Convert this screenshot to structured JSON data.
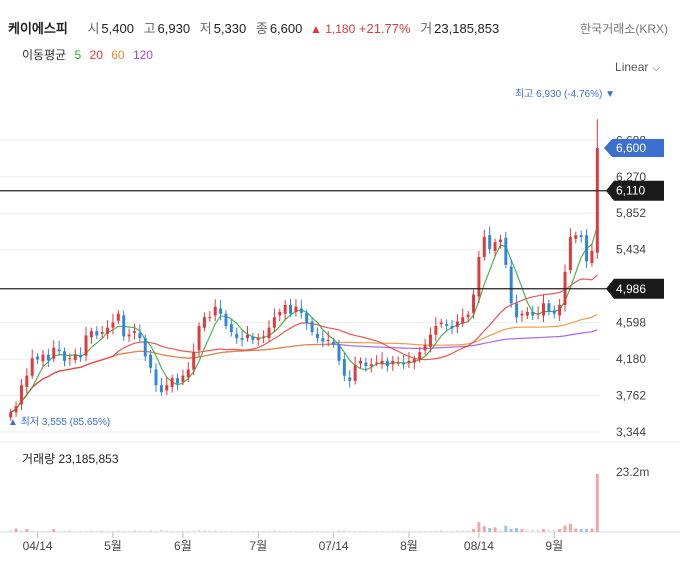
{
  "header": {
    "stock_name": "케이에스피",
    "open_label": "시",
    "open_value": "5,400",
    "high_label": "고",
    "high_value": "6,930",
    "low_label": "저",
    "low_value": "5,330",
    "close_label": "종",
    "close_value": "6,600",
    "change_value": "▲ 1,180",
    "change_pct": "+21.77%",
    "volume_label": "거",
    "volume_value": "23,185,853",
    "exchange": "한국거래소(KRX)"
  },
  "moving_average": {
    "label": "이동평균",
    "periods": [
      {
        "value": "5",
        "color": "#2fa82f"
      },
      {
        "value": "20",
        "color": "#e8393b"
      },
      {
        "value": "60",
        "color": "#f08c24"
      },
      {
        "value": "120",
        "color": "#9b4fe0"
      }
    ]
  },
  "scale_selector": "Linear",
  "colors": {
    "up": "#e2383d",
    "down": "#2f86d9",
    "ma5": "#2fa82f",
    "ma20": "#e8393b",
    "ma60": "#f08c24",
    "ma120": "#9b4fe0"
  },
  "chart_data": {
    "type": "candlestick",
    "ylim": [
      3344,
      7150
    ],
    "yticks": [
      "6,688",
      "6,270",
      "5,852",
      "5,434",
      "4,598",
      "4,180",
      "3,762",
      "3,344"
    ],
    "xlabels": [
      "04/14",
      "5월",
      "6월",
      "7월",
      "07/14",
      "8월",
      "08/14",
      "9월"
    ],
    "max_annotation": "최고 6,930 (-4.76%) ▼",
    "min_annotation": "▲ 최저 3,555 (85.65%)",
    "current_price_label": "6,600",
    "current_price": 6600,
    "horizontal_lines": [
      {
        "label": "6,110",
        "value": 6110
      },
      {
        "label": "4,986",
        "value": 4986
      }
    ],
    "volume_title": "거래량 23,185,853",
    "volume_axis_label": "23.2m",
    "volume_max": 23185853,
    "closes": [
      3570,
      3640,
      3880,
      3990,
      4190,
      4175,
      4230,
      4165,
      4310,
      4270,
      4160,
      4190,
      4230,
      4200,
      4450,
      4500,
      4450,
      4490,
      4540,
      4600,
      4700,
      4440,
      4460,
      4500,
      4420,
      4210,
      4080,
      3880,
      3800,
      3880,
      3960,
      3900,
      3990,
      4060,
      4260,
      4560,
      4660,
      4660,
      4780,
      4700,
      4560,
      4490,
      4420,
      4400,
      4460,
      4400,
      4420,
      4440,
      4540,
      4660,
      4720,
      4800,
      4700,
      4780,
      4710,
      4590,
      4490,
      4420,
      4380,
      4400,
      4350,
      4160,
      3990,
      3930,
      4110,
      4160,
      4100,
      4120,
      4140,
      4160,
      4100,
      4160,
      4140,
      4120,
      4160,
      4180,
      4260,
      4340,
      4460,
      4560,
      4600,
      4560,
      4530,
      4610,
      4660,
      4690,
      4920,
      5350,
      5580,
      5440,
      5520,
      5550,
      5260,
      4820,
      4660,
      4700,
      4720,
      4680,
      4700,
      4820,
      4720,
      4700,
      4800,
      5180,
      5580,
      5600,
      5580,
      5300,
      5420,
      6600
    ],
    "volumes": [
      0.03,
      0.06,
      0.03,
      0.05,
      0.03,
      0.02,
      0.02,
      0.02,
      0.05,
      0.02,
      0.02,
      0.03,
      0.02,
      0.02,
      0.02,
      0.03,
      0.02,
      0.03,
      0.02,
      0.02,
      0.03,
      0.02,
      0.02,
      0.03,
      0.03,
      0.02,
      0.03,
      0.02,
      0.04,
      0.03,
      0.02,
      0.02,
      0.02,
      0.02,
      0.03,
      0.04,
      0.03,
      0.02,
      0.03,
      0.02,
      0.02,
      0.02,
      0.02,
      0.02,
      0.02,
      0.02,
      0.02,
      0.02,
      0.02,
      0.03,
      0.02,
      0.02,
      0.02,
      0.02,
      0.02,
      0.02,
      0.02,
      0.02,
      0.02,
      0.02,
      0.02,
      0.03,
      0.03,
      0.02,
      0.02,
      0.02,
      0.02,
      0.02,
      0.02,
      0.02,
      0.02,
      0.02,
      0.02,
      0.02,
      0.02,
      0.02,
      0.02,
      0.02,
      0.02,
      0.03,
      0.03,
      0.02,
      0.02,
      0.03,
      0.03,
      0.03,
      0.05,
      0.17,
      0.1,
      0.07,
      0.08,
      0.04,
      0.11,
      0.05,
      0.07,
      0.05,
      0.04,
      0.04,
      0.03,
      0.05,
      0.04,
      0.04,
      0.05,
      0.11,
      0.14,
      0.06,
      0.05,
      0.05,
      0.06,
      1.0
    ]
  }
}
